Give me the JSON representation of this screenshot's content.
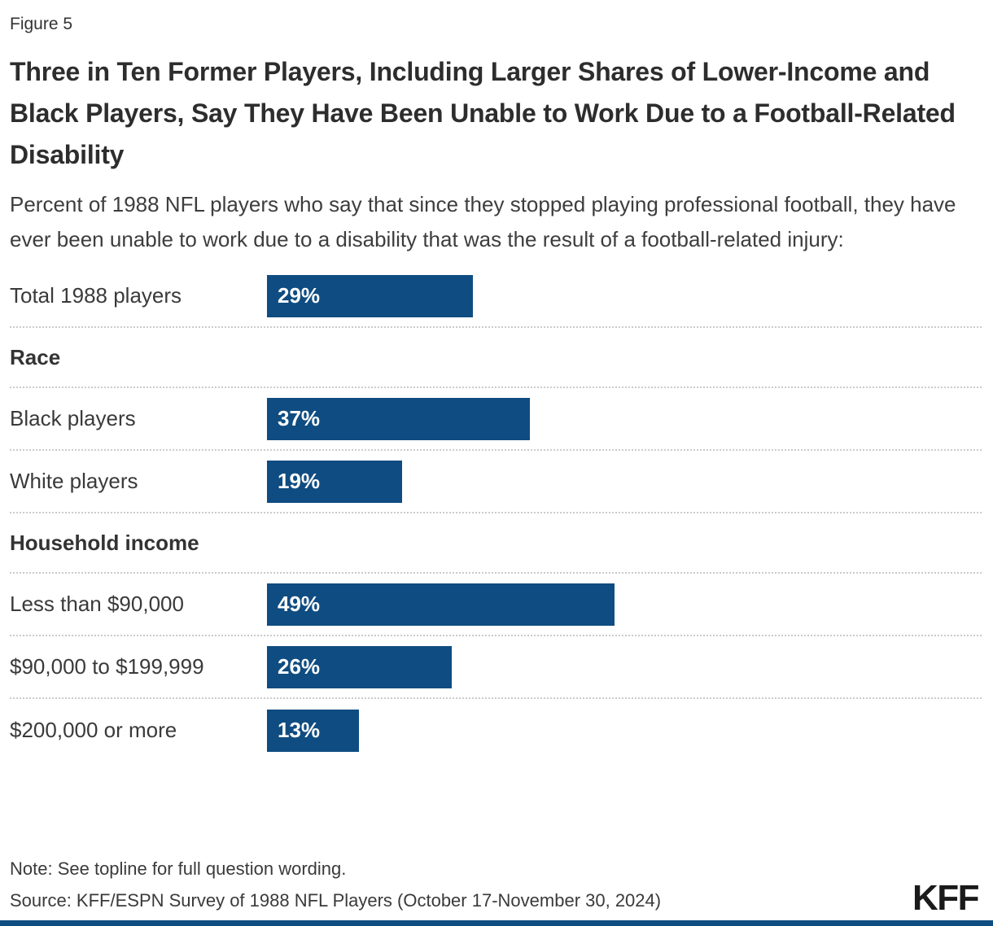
{
  "figure_label": "Figure 5",
  "title": "Three in Ten Former Players, Including Larger Shares of Lower-Income and Black Players, Say They Have Been Unable to Work Due to a Football-Related Disability",
  "subtitle": "Percent of 1988 NFL players who say that since they stopped playing professional football, they have ever been unable to work due to a disability that was the result of a football-related injury:",
  "note": "Note: See topline for full question wording.",
  "source": "Source: KFF/ESPN Survey of 1988 NFL Players (October 17-November 30, 2024)",
  "logo_text": "KFF",
  "colors": {
    "bar": "#0f4c81",
    "bar_value_text": "#ffffff",
    "title_text": "#2d2d2d",
    "body_text": "#3a3a3a",
    "separator": "#cbcbcb",
    "footer_bar": "#0f4c81",
    "logo_text": "#1a1a1a"
  },
  "chart_data": {
    "type": "bar",
    "orientation": "horizontal",
    "unit": "percent",
    "xlim": [
      0,
      100
    ],
    "grid": false,
    "legend": false,
    "title": "Three in Ten Former Players, Including Larger Shares of Lower-Income and Black Players, Say They Have Been Unable to Work Due to a Football-Related Disability",
    "subtitle": "Percent of 1988 NFL players who say that since they stopped playing professional football, they have ever been unable to work due to a disability that was the result of a football-related injury:",
    "rows": [
      {
        "kind": "bar",
        "label": "Total 1988 players",
        "value": 29,
        "display": "29%"
      },
      {
        "kind": "header",
        "label": "Race"
      },
      {
        "kind": "bar",
        "label": "Black players",
        "value": 37,
        "display": "37%"
      },
      {
        "kind": "bar",
        "label": "White players",
        "value": 19,
        "display": "19%"
      },
      {
        "kind": "header",
        "label": "Household income"
      },
      {
        "kind": "bar",
        "label": "Less than $90,000",
        "value": 49,
        "display": "49%"
      },
      {
        "kind": "bar",
        "label": "$90,000 to $199,999",
        "value": 26,
        "display": "26%"
      },
      {
        "kind": "bar",
        "label": "$200,000 or more",
        "value": 13,
        "display": "13%"
      }
    ]
  }
}
